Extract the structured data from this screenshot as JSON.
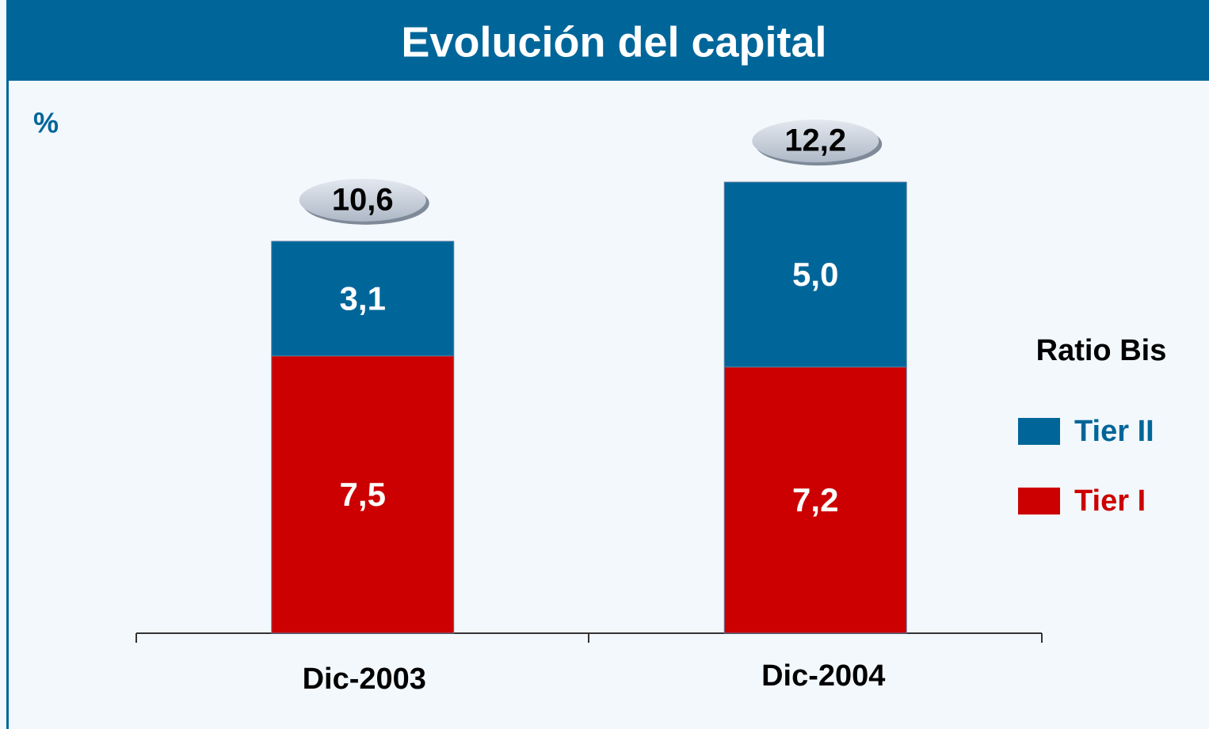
{
  "chart_data": {
    "type": "stacked_bar",
    "title": "Evolución del capital",
    "y_label": "%",
    "categories": [
      "Dic-2003",
      "Dic-2004"
    ],
    "series": [
      {
        "name": "Tier I",
        "color": "#cc0000",
        "values": [
          7.5,
          7.2
        ],
        "value_labels": [
          "7,5",
          "7,2"
        ]
      },
      {
        "name": "Tier II",
        "color": "#00669a",
        "values": [
          3.1,
          5.0
        ],
        "value_labels": [
          "3,1",
          "5,0"
        ]
      }
    ],
    "totals": [
      10.6,
      12.2
    ],
    "total_labels": [
      "10,6",
      "12,2"
    ],
    "legend_title": "Ratio Bis",
    "legend": "right",
    "ylim": [
      0,
      14
    ]
  }
}
